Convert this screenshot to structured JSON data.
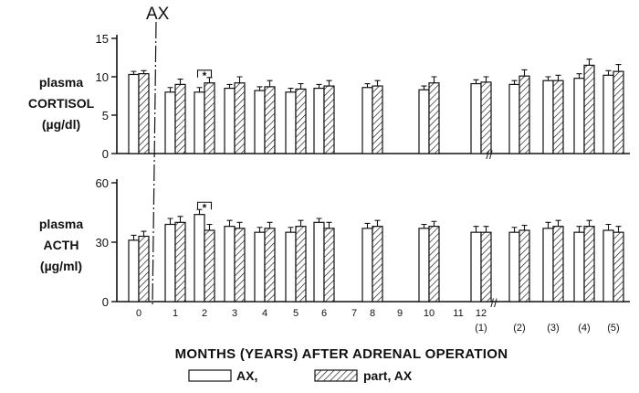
{
  "chart_data": [
    {
      "type": "bar",
      "panel": "top",
      "ylabel_lines": [
        "plasma",
        "CORTISOL",
        "(µg/dl)"
      ],
      "ylim": [
        0,
        15
      ],
      "yticks": [
        0,
        5,
        10,
        15
      ],
      "categories": [
        "0",
        "1",
        "2",
        "3",
        "4",
        "5",
        "6",
        "7",
        "8",
        "9",
        "10",
        "11",
        "12",
        "(2)",
        "(3)",
        "(4)",
        "(5)"
      ],
      "series": [
        {
          "name": "AX,",
          "values": [
            10.3,
            8.0,
            8.0,
            8.5,
            8.2,
            8.0,
            8.5,
            null,
            8.6,
            null,
            8.3,
            null,
            9.1,
            9.0,
            9.5,
            9.8,
            10.2
          ]
        },
        {
          "name": "part, AX",
          "values": [
            10.4,
            9.0,
            9.2,
            9.2,
            8.7,
            8.4,
            8.8,
            null,
            8.8,
            null,
            9.2,
            null,
            9.3,
            10.1,
            9.5,
            11.5,
            10.7
          ]
        }
      ],
      "errors": [
        [
          0.4,
          0.6,
          0.6,
          0.5,
          0.5,
          0.5,
          0.5,
          null,
          0.5,
          null,
          0.5,
          null,
          0.5,
          0.5,
          0.5,
          0.6,
          0.6
        ],
        [
          0.4,
          0.7,
          0.7,
          0.8,
          0.8,
          0.7,
          0.7,
          null,
          0.7,
          null,
          0.8,
          null,
          0.7,
          0.8,
          0.7,
          0.8,
          0.9
        ]
      ],
      "significance": {
        "category": "2",
        "label": "*"
      }
    },
    {
      "type": "bar",
      "panel": "bottom",
      "ylabel_lines": [
        "plasma",
        "ACTH",
        "(µg/ml)"
      ],
      "ylim": [
        0,
        60
      ],
      "yticks": [
        0,
        30,
        60
      ],
      "categories": [
        "0",
        "1",
        "2",
        "3",
        "4",
        "5",
        "6",
        "7",
        "8",
        "9",
        "10",
        "11",
        "12",
        "(2)",
        "(3)",
        "(4)",
        "(5)"
      ],
      "series": [
        {
          "name": "AX,",
          "values": [
            31,
            39,
            44,
            38,
            35,
            35,
            40,
            null,
            37,
            null,
            37,
            null,
            35,
            35,
            37,
            35,
            36
          ]
        },
        {
          "name": "part, AX",
          "values": [
            33,
            40,
            36,
            37,
            37,
            38,
            37,
            null,
            38,
            null,
            38,
            null,
            35,
            36,
            38,
            38,
            35
          ]
        }
      ],
      "errors": [
        [
          2.5,
          3,
          2.5,
          3,
          2.5,
          2.5,
          2,
          null,
          2.5,
          null,
          2,
          null,
          3,
          2.5,
          3,
          3,
          3
        ],
        [
          2.5,
          3,
          3,
          3,
          3,
          3,
          3,
          null,
          3,
          null,
          2.5,
          null,
          3,
          2.5,
          3,
          3,
          3
        ]
      ],
      "significance": {
        "category": "2",
        "label": "*"
      }
    }
  ],
  "x_tick_labels": [
    "0",
    "1",
    "2",
    "3",
    "4",
    "5",
    "6",
    "7",
    "8",
    "9",
    "10",
    "11",
    "12"
  ],
  "year_labels": [
    "(1)",
    "(2)",
    "(3)",
    "(4)",
    "(5)"
  ],
  "axis_break_mark": "//",
  "ax_marker_label": "AX",
  "xlabel": "MONTHS (YEARS) AFTER ADRENAL OPERATION",
  "legend": [
    {
      "label": "AX,",
      "style": "open"
    },
    {
      "label": "part, AX",
      "style": "hatched"
    }
  ],
  "significance_label": "*"
}
